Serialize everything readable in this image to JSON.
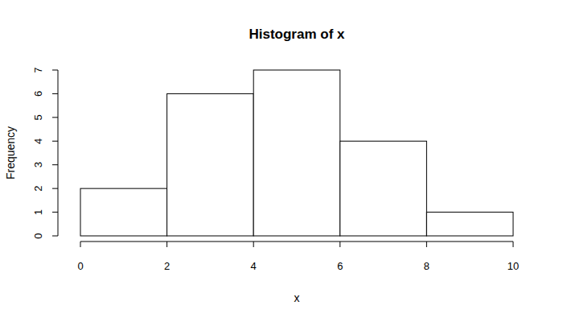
{
  "chart_data": {
    "type": "histogram",
    "title": "Histogram of x",
    "x_label": "x",
    "y_label": "Frequency",
    "bins": [
      0,
      2,
      4,
      6,
      8,
      10
    ],
    "values": [
      2,
      6,
      7,
      4,
      1
    ],
    "xlim": [
      0,
      10
    ],
    "xticks": [
      0,
      2,
      4,
      6,
      8,
      10
    ],
    "ylim": [
      0,
      7
    ],
    "yticks": [
      0,
      1,
      2,
      3,
      4,
      5,
      6,
      7
    ],
    "grid": false
  }
}
